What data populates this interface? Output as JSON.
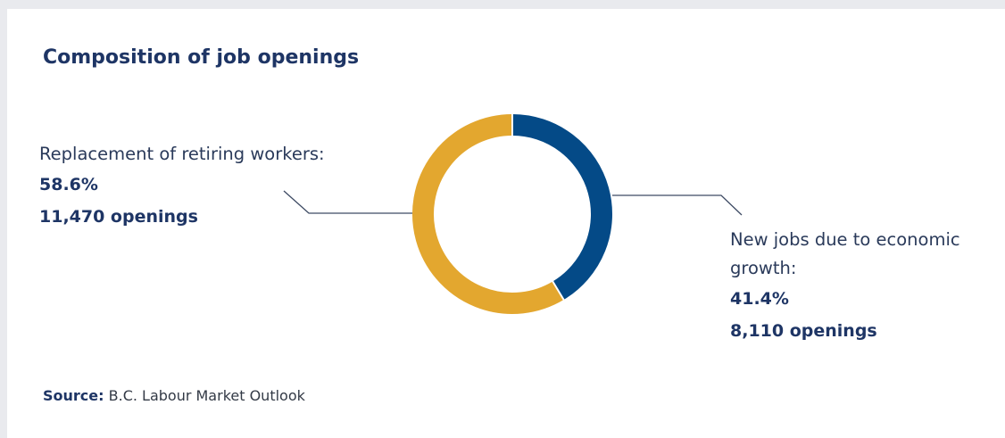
{
  "title": "Composition of job openings",
  "chart_data": {
    "type": "pie",
    "donut": true,
    "series": [
      {
        "name": "New jobs due to economic growth:",
        "percent_label": "41.4%",
        "count_label": "8,110 openings",
        "value": 41.4,
        "openings": 8110,
        "color": "#044a87"
      },
      {
        "name": "Replacement of retiring workers:",
        "percent_label": "58.6%",
        "count_label": "11,470 openings",
        "value": 58.6,
        "openings": 11470,
        "color": "#e3a72f"
      }
    ]
  },
  "labels": {
    "left": {
      "name": "Replacement of retiring workers:",
      "pct": "58.6%",
      "count": "11,470 openings"
    },
    "right": {
      "name_line1": "New jobs due to economic",
      "name_line2": "growth:",
      "pct": "41.4%",
      "count": "8,110 openings"
    }
  },
  "source": {
    "label": "Source:",
    "text": "B.C. Labour Market Outlook"
  },
  "colors": {
    "navy": "#1e3565",
    "blue_segment": "#044a87",
    "gold_segment": "#e3a72f",
    "leader_line": "#3d4a63"
  }
}
